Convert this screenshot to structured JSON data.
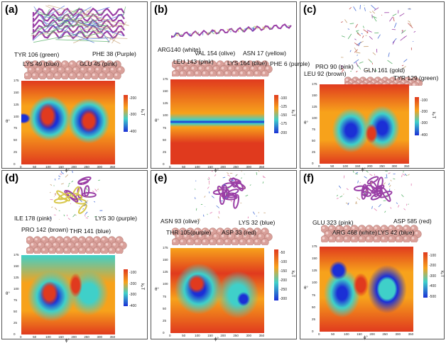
{
  "panels": [
    {
      "label": "(a)",
      "annotations": [
        "TYR 106 (green)",
        "PHE 38 (Purple)",
        "LYS 49 (blue)",
        "GLU 45 (pink)"
      ],
      "colorbar_ticks": [
        "-200",
        "-300",
        "-400"
      ],
      "colorbar_label": "kₚT"
    },
    {
      "label": "(b)",
      "annotations": [
        "ARG140 (white)",
        "VAL 154 (olive)",
        "ASN 17 (yellow)",
        "LEU 143 (pink)",
        "LYS 164 (blue)",
        "PHE 6 (purple)"
      ],
      "colorbar_ticks": [
        "-100",
        "-125",
        "-150",
        "-175",
        "-200"
      ],
      "colorbar_label": "kₚT"
    },
    {
      "label": "(c)",
      "annotations": [
        "PRO 90 (pink)",
        "LEU 92 (brown)",
        "GLN 161 (gold)",
        "TYR 129 (green)"
      ],
      "colorbar_ticks": [
        "-100",
        "-200",
        "-300",
        "-400"
      ],
      "colorbar_label": "kₚT"
    },
    {
      "label": "(d)",
      "annotations": [
        "ILE 178 (pink)",
        "LYS 30 (purple)",
        "PRO 142 (brown)",
        "THR 141 (blue)"
      ],
      "colorbar_ticks": [
        "-100",
        "-200",
        "-300",
        "-400"
      ],
      "colorbar_label": "kₚT"
    },
    {
      "label": "(e)",
      "annotations": [
        "ASN 93 (olive)",
        "LYS 32 (blue)",
        "THR 105(purple)",
        "ASP 33 (red)"
      ],
      "colorbar_ticks": [
        "-50",
        "-100",
        "-150",
        "-200",
        "-250",
        "-300"
      ],
      "colorbar_label": "kₚT"
    },
    {
      "label": "(f)",
      "annotations": [
        "GLU 323 (pink)",
        "ASP 585 (red)",
        "ARG 468 (white)",
        "LYS 42 (blue)"
      ],
      "colorbar_ticks": [
        "-100",
        "-200",
        "-300",
        "-400",
        "-500"
      ],
      "colorbar_label": "kₚT"
    }
  ],
  "axes": {
    "x_label": "ϕ°",
    "y_label": "θ°",
    "x_ticks": [
      "0",
      "50",
      "100",
      "150",
      "200",
      "250",
      "300",
      "350"
    ],
    "y_ticks": [
      "0",
      "25",
      "50",
      "75",
      "100",
      "125",
      "150",
      "175"
    ]
  },
  "colors": {
    "surface": "#d9a09a",
    "heat_hot": "#e03a1e",
    "heat_warm": "#f7a21b",
    "heat_mid": "#3fd0c9",
    "heat_cold": "#1b2fd6"
  }
}
